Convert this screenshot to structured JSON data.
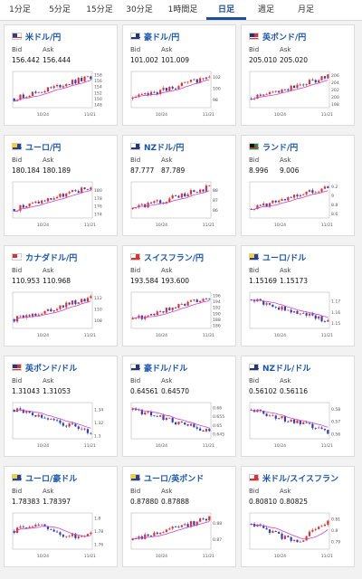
{
  "tabs": [
    "1分足",
    "5分足",
    "15分足",
    "30分足",
    "1時間足",
    "日足",
    "週足",
    "月足"
  ],
  "active_tab": "日足",
  "labels": {
    "bid": "Bid",
    "ask": "Ask"
  },
  "colors": {
    "up": "#e03030",
    "down": "#2a3fbf",
    "ma": "#cc44cc",
    "link": "#1a56b0"
  },
  "cards": [
    {
      "pair": "米ドル/円",
      "flag": "us",
      "bid": "156.442",
      "ask": "156.444",
      "chart_data": {
        "type": "candlestick",
        "trend": "up",
        "xticks": [
          "10/24",
          "11/21"
        ],
        "yticks": [
          "148",
          "150",
          "152",
          "154",
          "156",
          "158"
        ],
        "ylim": [
          147,
          159
        ]
      }
    },
    {
      "pair": "豪ドル/円",
      "flag": "au",
      "bid": "101.002",
      "ask": "101.009",
      "chart_data": {
        "type": "candlestick",
        "trend": "up",
        "xticks": [
          "10/24",
          "11/21"
        ],
        "yticks": [
          "98",
          "100",
          "102"
        ],
        "ylim": [
          96.5,
          103
        ]
      }
    },
    {
      "pair": "英ポンド/円",
      "flag": "uk",
      "bid": "205.010",
      "ask": "205.020",
      "chart_data": {
        "type": "candlestick",
        "trend": "up",
        "xticks": [
          "10/24",
          "11/21"
        ],
        "yticks": [
          "198",
          "200",
          "202",
          "204",
          "206"
        ],
        "ylim": [
          197,
          207
        ]
      }
    },
    {
      "pair": "ユーロ/円",
      "flag": "eu",
      "bid": "180.184",
      "ask": "180.189",
      "chart_data": {
        "type": "candlestick",
        "trend": "up",
        "xticks": [
          "10/24",
          "11/21"
        ],
        "yticks": [
          "174",
          "176",
          "178",
          "180"
        ],
        "ylim": [
          173,
          182
        ]
      }
    },
    {
      "pair": "NZドル/円",
      "flag": "nz",
      "bid": "87.777",
      "ask": "87.789",
      "chart_data": {
        "type": "candlestick",
        "trend": "up",
        "xticks": [
          "10/24",
          "11/21"
        ],
        "yticks": [
          "86",
          "87",
          "88"
        ],
        "ylim": [
          85.2,
          88.8
        ]
      }
    },
    {
      "pair": "ランド/円",
      "flag": "za",
      "bid": "8.996",
      "ask": "9.006",
      "chart_data": {
        "type": "candlestick",
        "trend": "up",
        "xticks": [
          "10/24",
          "11/21"
        ],
        "yticks": [
          "8.6",
          "8.8",
          "9",
          "9.2"
        ],
        "ylim": [
          8.5,
          9.3
        ]
      }
    },
    {
      "pair": "カナダドル/円",
      "flag": "ca",
      "bid": "110.953",
      "ask": "110.968",
      "chart_data": {
        "type": "candlestick",
        "trend": "up",
        "xticks": [
          "10/24",
          "11/21"
        ],
        "yticks": [
          "108",
          "110",
          "112"
        ],
        "ylim": [
          106.5,
          113
        ]
      }
    },
    {
      "pair": "スイスフラン/円",
      "flag": "ch",
      "bid": "193.584",
      "ask": "193.600",
      "chart_data": {
        "type": "candlestick",
        "trend": "up",
        "xticks": [
          "10/24",
          "11/21"
        ],
        "yticks": [
          "186",
          "188",
          "190",
          "192",
          "194",
          "196"
        ],
        "ylim": [
          185,
          197
        ]
      }
    },
    {
      "pair": "ユーロ/ドル",
      "flag": "eu",
      "bid": "1.15169",
      "ask": "1.15173",
      "chart_data": {
        "type": "candlestick",
        "trend": "down",
        "xticks": [
          "10/24",
          "11/21"
        ],
        "yticks": [
          "1.15",
          "1.16",
          "1.17"
        ],
        "ylim": [
          1.145,
          1.178
        ]
      }
    },
    {
      "pair": "英ポンド/ドル",
      "flag": "uk",
      "bid": "1.31043",
      "ask": "1.31053",
      "chart_data": {
        "type": "candlestick",
        "trend": "down",
        "xticks": [
          "10/24",
          "11/21"
        ],
        "yticks": [
          "1.3",
          "1.32",
          "1.34"
        ],
        "ylim": [
          1.295,
          1.35
        ]
      }
    },
    {
      "pair": "豪ドル/ドル",
      "flag": "au",
      "bid": "0.64561",
      "ask": "0.64570",
      "chart_data": {
        "type": "candlestick",
        "trend": "down",
        "xticks": [
          "10/24",
          "11/21"
        ],
        "yticks": [
          "0.645",
          "0.65",
          "0.655",
          "0.66"
        ],
        "ylim": [
          0.642,
          0.663
        ]
      }
    },
    {
      "pair": "NZドル/ドル",
      "flag": "nz",
      "bid": "0.56102",
      "ask": "0.56116",
      "chart_data": {
        "type": "candlestick",
        "trend": "down",
        "xticks": [
          "10/24",
          "11/21"
        ],
        "yticks": [
          "0.56",
          "0.57",
          "0.58"
        ],
        "ylim": [
          0.556,
          0.585
        ]
      }
    },
    {
      "pair": "ユーロ/豪ドル",
      "flag": "eu",
      "bid": "1.78383",
      "ask": "1.78397",
      "chart_data": {
        "type": "candlestick",
        "trend": "flat",
        "xticks": [
          "10/24",
          "11/21"
        ],
        "yticks": [
          "1.76",
          "1.78",
          "1.8"
        ],
        "ylim": [
          1.752,
          1.808
        ]
      }
    },
    {
      "pair": "ユーロ/英ポンド",
      "flag": "eu",
      "bid": "0.87880",
      "ask": "0.87888",
      "chart_data": {
        "type": "candlestick",
        "trend": "up",
        "xticks": [
          "10/24",
          "11/21"
        ],
        "yticks": [
          "0.87",
          "0.88"
        ],
        "ylim": [
          0.864,
          0.886
        ]
      }
    },
    {
      "pair": "米ドル/スイスフラン",
      "flag": "ch",
      "bid": "0.80810",
      "ask": "0.80825",
      "chart_data": {
        "type": "candlestick",
        "trend": "vshape",
        "xticks": [
          "10/24",
          "11/21"
        ],
        "yticks": [
          "0.79",
          "0.8",
          "0.81"
        ],
        "ylim": [
          0.783,
          0.815
        ]
      }
    }
  ]
}
